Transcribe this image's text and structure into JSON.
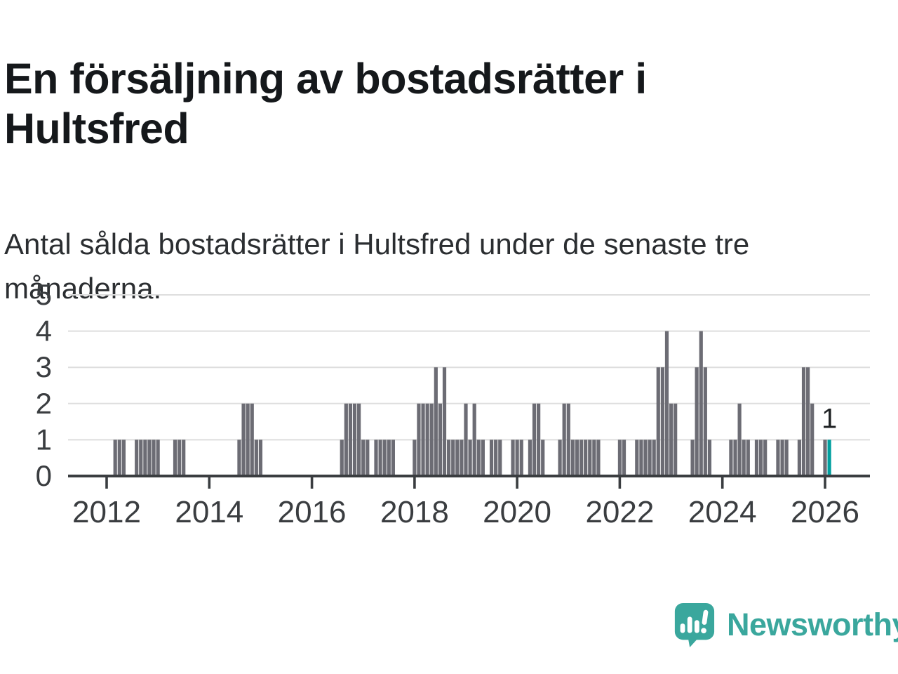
{
  "page": {
    "title": "En försäljning av bostadsrätter i Hultsfred",
    "subtitle": "Antal sålda bostadsrätter i Hultsfred under de senaste tre månaderna."
  },
  "branding": {
    "logo_text": "Newsworthy",
    "logo_color": "#3aa79d"
  },
  "chart_data": {
    "type": "bar",
    "title": "En försäljning av bostadsrätter i Hultsfred",
    "frequency": "monthly",
    "x_start": "2012-01",
    "x_end": "2026-02",
    "series": [
      {
        "year": 2012,
        "monthly": [
          0,
          0,
          1,
          1,
          1,
          0,
          0,
          1,
          1,
          1,
          1,
          1
        ]
      },
      {
        "year": 2013,
        "monthly": [
          1,
          0,
          0,
          0,
          1,
          1,
          1,
          0,
          0,
          0,
          0,
          0
        ]
      },
      {
        "year": 2014,
        "monthly": [
          0,
          0,
          0,
          0,
          0,
          0,
          0,
          1,
          2,
          2,
          2,
          1
        ]
      },
      {
        "year": 2015,
        "monthly": [
          1,
          0,
          0,
          0,
          0,
          0,
          0,
          0,
          0,
          0,
          0,
          0
        ]
      },
      {
        "year": 2016,
        "monthly": [
          0,
          0,
          0,
          0,
          0,
          0,
          0,
          1,
          2,
          2,
          2,
          2
        ]
      },
      {
        "year": 2017,
        "monthly": [
          1,
          1,
          0,
          1,
          1,
          1,
          1,
          1,
          0,
          0,
          0,
          0
        ]
      },
      {
        "year": 2018,
        "monthly": [
          1,
          2,
          2,
          2,
          2,
          3,
          2,
          3,
          1,
          1,
          1,
          1
        ]
      },
      {
        "year": 2019,
        "monthly": [
          2,
          1,
          2,
          1,
          1,
          0,
          1,
          1,
          1,
          0,
          0,
          1
        ]
      },
      {
        "year": 2020,
        "monthly": [
          1,
          1,
          0,
          1,
          2,
          2,
          1,
          0,
          0,
          0,
          1,
          2
        ]
      },
      {
        "year": 2021,
        "monthly": [
          2,
          1,
          1,
          1,
          1,
          1,
          1,
          1,
          0,
          0,
          0,
          0
        ]
      },
      {
        "year": 2022,
        "monthly": [
          1,
          1,
          0,
          0,
          1,
          1,
          1,
          1,
          1,
          3,
          3,
          4
        ]
      },
      {
        "year": 2023,
        "monthly": [
          2,
          2,
          0,
          0,
          0,
          1,
          3,
          4,
          3,
          1,
          0,
          0
        ]
      },
      {
        "year": 2024,
        "monthly": [
          0,
          0,
          1,
          1,
          2,
          1,
          1,
          0,
          1,
          1,
          1,
          0
        ]
      },
      {
        "year": 2025,
        "monthly": [
          0,
          1,
          1,
          1,
          0,
          0,
          1,
          3,
          3,
          2,
          0,
          0
        ]
      },
      {
        "year": 2026,
        "monthly": [
          1,
          1
        ]
      }
    ],
    "highlight_last": true,
    "last_value_label": "1",
    "yticks": [
      0,
      1,
      2,
      3,
      4,
      5
    ],
    "ylim": [
      0,
      5
    ],
    "xticks": [
      2012,
      2014,
      2016,
      2018,
      2020,
      2022,
      2024,
      2026
    ],
    "grid": true,
    "legend": "none",
    "bar_color": "#6c6c74",
    "highlight_color": "#009f9f",
    "grid_color": "#dedede",
    "axis_color": "#3a3d40"
  }
}
